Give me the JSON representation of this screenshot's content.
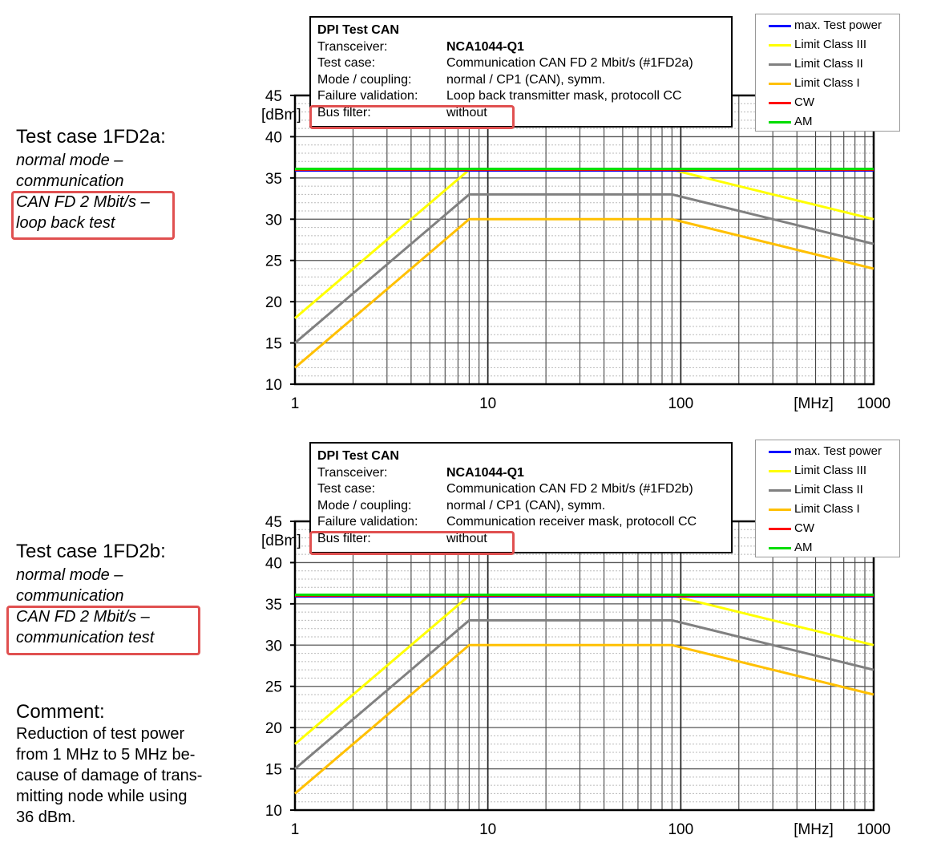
{
  "left_panels": [
    {
      "title": "Test case 1FD2a:",
      "lines": [
        "normal mode –",
        "communication",
        "CAN FD 2 Mbit/s –",
        "loop back test"
      ]
    },
    {
      "title": "Test case 1FD2b:",
      "lines": [
        "normal mode –",
        "communication",
        "CAN FD 2 Mbit/s –",
        "communication test"
      ]
    }
  ],
  "comment": {
    "title": "Comment:",
    "lines": [
      "Reduction of test power",
      "from 1 MHz to 5 MHz be-",
      "cause of damage of trans-",
      "mitting node while using",
      "36 dBm."
    ]
  },
  "colors": {
    "max_test_power": "#0000ff",
    "limit_class_3": "#ffff00",
    "limit_class_2": "#808080",
    "limit_class_1": "#ffc000",
    "cw": "#ff0000",
    "am": "#00dd00",
    "highlight": "#e05050"
  },
  "chart_data": [
    {
      "type": "line",
      "info": {
        "title": "DPI Test CAN",
        "rows": [
          {
            "label": "Transceiver:",
            "value": "NCA1044-Q1"
          },
          {
            "label": "Test case:",
            "value": "Communication CAN FD 2 Mbit/s (#1FD2a)"
          },
          {
            "label": "Mode / coupling:",
            "value": "normal / CP1 (CAN), symm."
          },
          {
            "label": "Failure validation:",
            "value": "Loop back transmitter mask, protocoll CC"
          },
          {
            "label": "Bus filter:",
            "value": "without"
          }
        ]
      },
      "xlabel": "[MHz]",
      "ylabel": "[dBm]",
      "x_scale": "log",
      "xlim": [
        1,
        1000
      ],
      "ylim": [
        10,
        45
      ],
      "xticks": [
        "1",
        "10",
        "100",
        "1000"
      ],
      "yticks": [
        "10",
        "15",
        "20",
        "25",
        "30",
        "35",
        "40",
        "45"
      ],
      "grid": true,
      "legend_position": "top-right",
      "series": [
        {
          "name": "max. Test power",
          "color": "#0000ff",
          "x": [
            1,
            1000
          ],
          "y": [
            36,
            36
          ]
        },
        {
          "name": "Limit Class III",
          "color": "#ffff00",
          "x": [
            1,
            8,
            90,
            1000
          ],
          "y": [
            18,
            36,
            36,
            30
          ]
        },
        {
          "name": "Limit Class II",
          "color": "#808080",
          "x": [
            1,
            8,
            90,
            1000
          ],
          "y": [
            15,
            33,
            33,
            27
          ]
        },
        {
          "name": "Limit Class I",
          "color": "#ffc000",
          "x": [
            1,
            8,
            90,
            1000
          ],
          "y": [
            12,
            30,
            30,
            24
          ]
        },
        {
          "name": "CW",
          "color": "#ff0000",
          "x": [
            1,
            1000
          ],
          "y": [
            36,
            36
          ]
        },
        {
          "name": "AM",
          "color": "#00dd00",
          "x": [
            1,
            1000
          ],
          "y": [
            36,
            36
          ]
        }
      ]
    },
    {
      "type": "line",
      "info": {
        "title": "DPI Test CAN",
        "rows": [
          {
            "label": "Transceiver:",
            "value": "NCA1044-Q1"
          },
          {
            "label": "Test case:",
            "value": "Communication CAN FD 2 Mbit/s (#1FD2b)"
          },
          {
            "label": "Mode / coupling:",
            "value": "normal / CP1 (CAN), symm."
          },
          {
            "label": "Failure validation:",
            "value": "Communication receiver mask, protocoll CC"
          },
          {
            "label": "Bus filter:",
            "value": "without"
          }
        ]
      },
      "xlabel": "[MHz]",
      "ylabel": "[dBm]",
      "x_scale": "log",
      "xlim": [
        1,
        1000
      ],
      "ylim": [
        10,
        45
      ],
      "xticks": [
        "1",
        "10",
        "100",
        "1000"
      ],
      "yticks": [
        "10",
        "15",
        "20",
        "25",
        "30",
        "35",
        "40",
        "45"
      ],
      "grid": true,
      "legend_position": "top-right",
      "series": [
        {
          "name": "max. Test power",
          "color": "#0000ff",
          "x": [
            1,
            1000
          ],
          "y": [
            36,
            36
          ]
        },
        {
          "name": "Limit Class III",
          "color": "#ffff00",
          "x": [
            1,
            8,
            90,
            1000
          ],
          "y": [
            18,
            36,
            36,
            30
          ]
        },
        {
          "name": "Limit Class II",
          "color": "#808080",
          "x": [
            1,
            8,
            90,
            1000
          ],
          "y": [
            15,
            33,
            33,
            27
          ]
        },
        {
          "name": "Limit Class I",
          "color": "#ffc000",
          "x": [
            1,
            8,
            90,
            1000
          ],
          "y": [
            12,
            30,
            30,
            24
          ]
        },
        {
          "name": "CW",
          "color": "#ff0000",
          "x": [
            1,
            1000
          ],
          "y": [
            36,
            36
          ]
        },
        {
          "name": "AM",
          "color": "#00dd00",
          "x": [
            1,
            1000
          ],
          "y": [
            36,
            36
          ]
        }
      ]
    }
  ]
}
